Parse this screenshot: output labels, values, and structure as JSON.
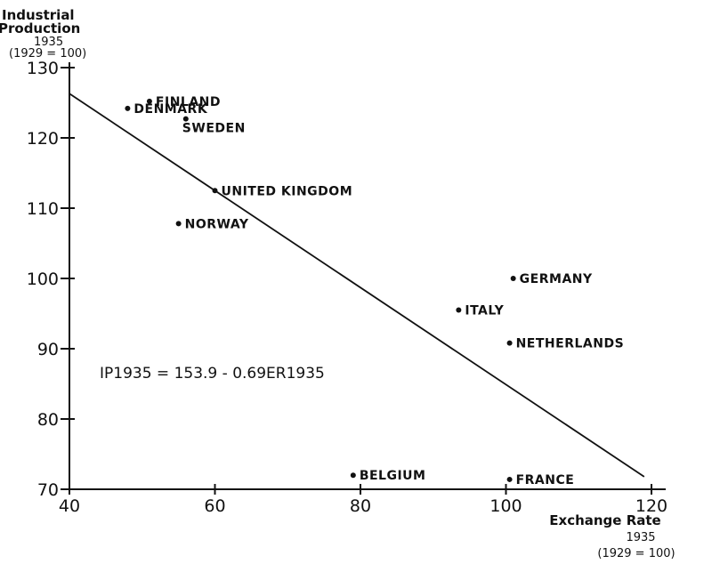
{
  "chart_data": {
    "type": "scatter",
    "y_title": [
      "Industrial",
      "Production",
      "1935",
      "(1929 = 100)"
    ],
    "x_title": [
      "Exchange Rate",
      "1935",
      "(1929 = 100)"
    ],
    "xlim": [
      40,
      120
    ],
    "ylim": [
      70,
      130
    ],
    "x_ticks": [
      40,
      60,
      80,
      100,
      120
    ],
    "y_ticks": [
      70,
      80,
      90,
      100,
      110,
      120,
      130
    ],
    "grid": false,
    "points": [
      {
        "label": "FINLAND",
        "x": 51,
        "y": 125.2
      },
      {
        "label": "DENMARK",
        "x": 48,
        "y": 124.2
      },
      {
        "label": "SWEDEN",
        "x": 56,
        "y": 122.7
      },
      {
        "label": "UNITED KINGDOM",
        "x": 60,
        "y": 112.5
      },
      {
        "label": "NORWAY",
        "x": 55,
        "y": 107.8
      },
      {
        "label": "GERMANY",
        "x": 101,
        "y": 100
      },
      {
        "label": "ITALY",
        "x": 93.5,
        "y": 95.5
      },
      {
        "label": "NETHERLANDS",
        "x": 100.5,
        "y": 90.8
      },
      {
        "label": "BELGIUM",
        "x": 79,
        "y": 72
      },
      {
        "label": "FRANCE",
        "x": 100.5,
        "y": 71.4
      }
    ],
    "regression": {
      "intercept": 153.9,
      "slope": -0.69,
      "x_range": [
        40,
        119
      ],
      "equation": "IP1935 = 153.9 - 0.69ER1935"
    }
  }
}
